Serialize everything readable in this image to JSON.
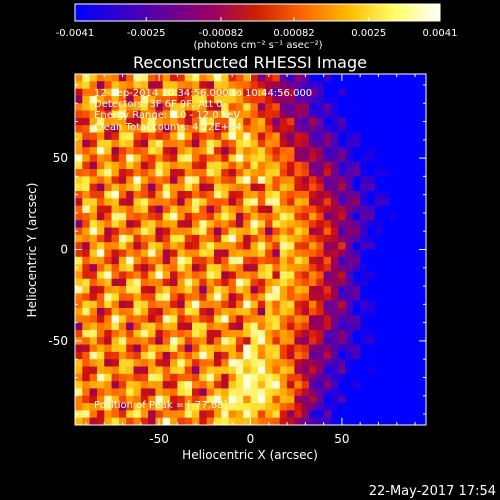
{
  "colorbar": {
    "tick_labels": [
      "-0.0041",
      "-0.0025",
      "-0.00082",
      "0.00082",
      "0.0025",
      "0.0041"
    ],
    "range": [
      -0.0041,
      0.0041
    ],
    "units_label": "(photons cm⁻² s⁻¹ asec⁻²)",
    "gradient_colors": [
      "#0000ff",
      "#3300cc",
      "#660099",
      "#990066",
      "#cc2200",
      "#ff6600",
      "#ffbb00",
      "#ffff66",
      "#ffffff"
    ]
  },
  "chart_data": {
    "type": "heatmap",
    "title": "Reconstructed RHESSI Image",
    "xlabel": "Heliocentric X (arcsec)",
    "ylabel": "Heliocentric Y (arcsec)",
    "xlim": [
      -96,
      96
    ],
    "ylim": [
      -96,
      96
    ],
    "x_ticks": [
      -50,
      0,
      50
    ],
    "y_ticks": [
      50,
      0,
      -50
    ],
    "grid": false,
    "peak_position": [
      -77,
      88
    ],
    "annotations": [
      "12-Sep-2014 10:34:56.000 to 10:44:56.000",
      "Detectors: 3F 6F 9F, Att 0",
      "Energy Range: 6.0 - 12.0 keV",
      "Clean    Total counts: 4.22E+04"
    ],
    "peak_label": "Position of Peak = [-77,88]"
  },
  "footer": {
    "date": "22-May-2017 17:54"
  }
}
